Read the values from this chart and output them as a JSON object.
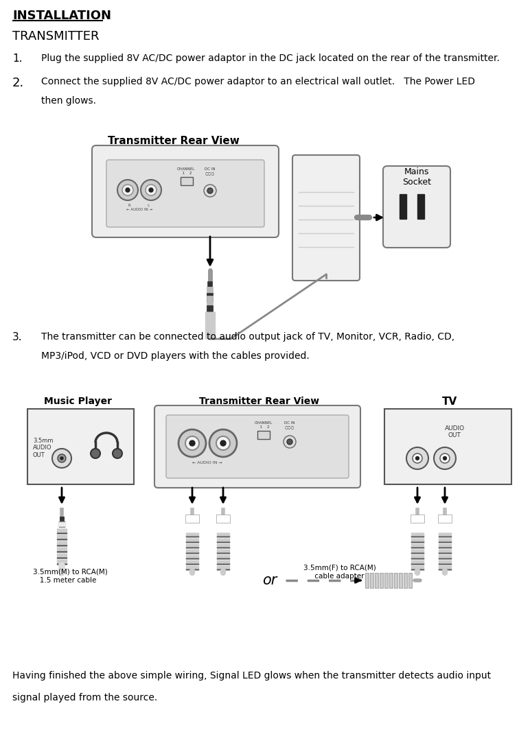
{
  "title_installation": "INSTALLATION",
  "title_transmitter": "TRANSMITTER",
  "item1": "Plug the supplied 8V AC/DC power adaptor in the DC jack located on the rear of the transmitter.",
  "item2_line1": "Connect the supplied 8V AC/DC power adaptor to an electrical wall outlet.   The Power LED",
  "item2_line2": "then glows.",
  "item3_line1": "The transmitter can be connected to audio output jack of TV, Monitor, VCR, Radio, CD,",
  "item3_line2": "MP3/iPod, VCD or DVD players with the cables provided.",
  "footer_line1": "Having finished the above simple wiring, Signal LED glows when the transmitter detects audio input",
  "footer_line2": "signal played from the source.",
  "bg_color": "#ffffff",
  "text_color": "#000000"
}
